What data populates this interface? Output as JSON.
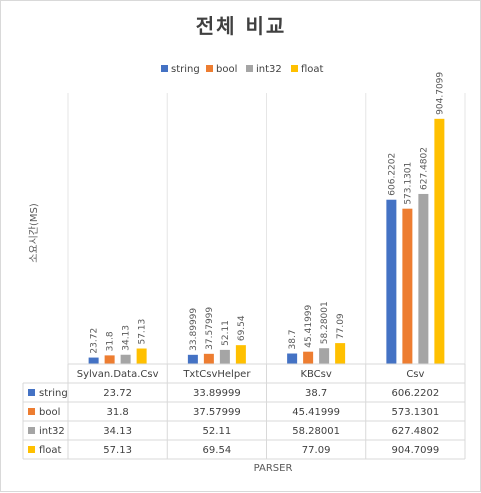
{
  "chart_data": {
    "type": "bar",
    "title": "전체 비교",
    "ylabel": "소요시간(MS)",
    "xlabel": "PARSER",
    "ylim": [
      0,
      1000
    ],
    "grid": false,
    "legend_position": "top",
    "categories": [
      "Sylvan.Data.Csv",
      "TxtCsvHelper",
      "KBCsv",
      "Csv"
    ],
    "series": [
      {
        "name": "string",
        "color": "#4472c4",
        "values": [
          23.72,
          33.89999,
          38.7,
          606.2202
        ],
        "labels": [
          "23.72",
          "33.89999",
          "38.7",
          "606.2202"
        ]
      },
      {
        "name": "bool",
        "color": "#ed7d31",
        "values": [
          31.8,
          37.57999,
          45.41999,
          573.1301
        ],
        "labels": [
          "31.8",
          "37.57999",
          "45.41999",
          "573.1301"
        ]
      },
      {
        "name": "int32",
        "color": "#a5a5a5",
        "values": [
          34.13,
          52.11,
          58.28001,
          627.4802
        ],
        "labels": [
          "34.13",
          "52.11",
          "58.28001",
          "627.4802"
        ]
      },
      {
        "name": "float",
        "color": "#ffc000",
        "values": [
          57.13,
          69.54,
          77.09,
          904.7099
        ],
        "labels": [
          "57.13",
          "69.54",
          "77.09",
          "904.7099"
        ]
      }
    ]
  }
}
